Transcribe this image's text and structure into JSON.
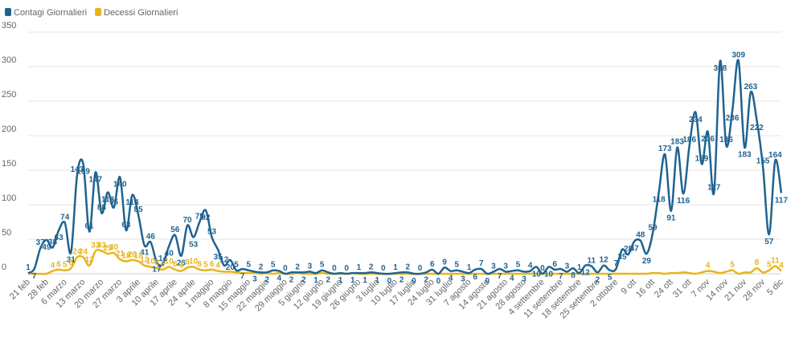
{
  "chart_data": {
    "type": "line",
    "categories": [
      "21 feb",
      null,
      null,
      "28 feb",
      null,
      null,
      "6 marzo",
      null,
      null,
      "13 marzo",
      null,
      null,
      "20 marzo",
      null,
      null,
      "27 marzo",
      null,
      null,
      "3 aprile",
      null,
      null,
      "10 aprile",
      null,
      null,
      "17 aprile",
      null,
      null,
      "24 aprile",
      null,
      null,
      "1 maggio",
      null,
      null,
      "8 maggio",
      null,
      null,
      "15 maggio",
      null,
      null,
      "22 maggio",
      null,
      null,
      "29 maggio",
      null,
      null,
      "5 giugno",
      null,
      null,
      "12 giugno",
      null,
      null,
      "19 giugno",
      null,
      null,
      "26 giugno",
      null,
      null,
      "3 luglio",
      null,
      null,
      "10 luglio",
      null,
      null,
      "17 luglio",
      null,
      null,
      "24 luglio",
      null,
      null,
      "31 luglio",
      null,
      null,
      "7 agosto",
      null,
      null,
      "14 agosto",
      null,
      null,
      "21 agosto",
      null,
      null,
      "28 agosto",
      null,
      null,
      "4 settembre",
      null,
      null,
      "11 settembre",
      null,
      null,
      "18 settembre",
      null,
      null,
      "25 settembre",
      null,
      null,
      "2 ottobre",
      null,
      null,
      "9 ott",
      null,
      null,
      "16 ott",
      null,
      null,
      "24 ott",
      null,
      null,
      "31 ott",
      null,
      null,
      "7 nov",
      null,
      null,
      "14 nov",
      null,
      null,
      "21 nov",
      null,
      null,
      "28 nov",
      null,
      null,
      "5 dic"
    ],
    "series": [
      {
        "name": "Contagi Giornalieri",
        "color": "#1f6391",
        "values": [
          1,
          7,
          37,
          49,
          38,
          63,
          74,
          31,
          143,
          159,
          61,
          147,
          88,
          118,
          96,
          140,
          63,
          114,
          85,
          41,
          46,
          17,
          14,
          40,
          56,
          26,
          70,
          53,
          75,
          92,
          53,
          35,
          12,
          20,
          5,
          7,
          5,
          3,
          2,
          2,
          5,
          4,
          0,
          2,
          2,
          2,
          3,
          1,
          5,
          2,
          0,
          1,
          0,
          1,
          1,
          1,
          2,
          1,
          0,
          0,
          1,
          2,
          2,
          0,
          0,
          2,
          6,
          0,
          9,
          4,
          5,
          3,
          1,
          6,
          7,
          0,
          3,
          7,
          3,
          4,
          5,
          3,
          4,
          10,
          0,
          10,
          6,
          7,
          3,
          8,
          1,
          12,
          11,
          2,
          12,
          5,
          7,
          35,
          28,
          47,
          48,
          29,
          59,
          118,
          173,
          91,
          183,
          116,
          186,
          234,
          159,
          206,
          117,
          308,
          186,
          236,
          309,
          183,
          263,
          222,
          155,
          57,
          164,
          117
        ]
      },
      {
        "name": "Decessi Giornalieri",
        "color": "#e8b51c",
        "values": [
          0,
          0,
          0,
          0,
          4,
          6,
          5,
          8,
          24,
          24,
          12,
          33,
          33,
          29,
          30,
          21,
          18,
          20,
          18,
          12,
          10,
          8,
          6,
          10,
          6,
          4,
          9,
          10,
          6,
          5,
          6,
          4,
          3,
          3,
          2,
          1,
          1,
          1,
          0,
          1,
          0,
          1,
          0,
          0,
          1,
          0,
          0,
          0,
          1,
          0,
          0,
          0,
          0,
          1,
          0,
          0,
          0,
          0,
          0,
          0,
          0,
          0,
          0,
          0,
          0,
          0,
          0,
          0,
          0,
          0,
          0,
          0,
          0,
          0,
          0,
          0,
          0,
          0,
          0,
          0,
          0,
          0,
          0,
          0,
          0,
          0,
          0,
          0,
          0,
          0,
          0,
          0,
          0,
          0,
          0,
          0,
          0,
          0,
          0,
          0,
          0,
          0,
          1,
          1,
          0,
          1,
          1,
          2,
          1,
          0,
          2,
          4,
          3,
          1,
          3,
          5,
          0,
          2,
          2,
          8,
          2,
          5,
          11,
          4
        ]
      }
    ],
    "ylim": [
      0,
      350
    ],
    "yticks": [
      0,
      50,
      100,
      150,
      200,
      250,
      300,
      350
    ],
    "grid": true,
    "legend": "top-left"
  }
}
